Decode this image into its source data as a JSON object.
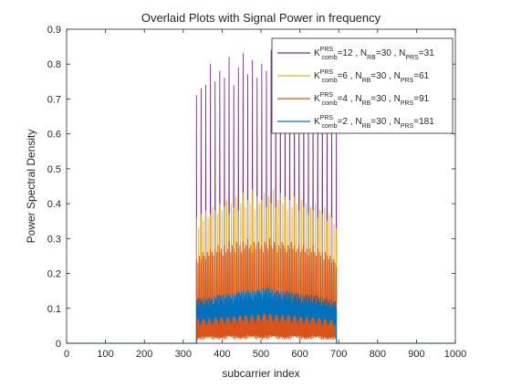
{
  "chart_data": {
    "type": "line",
    "title": "Overlaid Plots with Signal Power in frequency",
    "xlabel": "subcarrier index",
    "ylabel": "Power Spectral Density",
    "xlim": [
      0,
      1000
    ],
    "ylim": [
      0,
      0.9
    ],
    "xticks": [
      0,
      100,
      200,
      300,
      400,
      500,
      600,
      700,
      800,
      900,
      1000
    ],
    "yticks": [
      0,
      0.1,
      0.2,
      0.3,
      0.4,
      0.5,
      0.6,
      0.7,
      0.8,
      0.9
    ],
    "grid": false,
    "legend_position": "top-right",
    "occupied_range": [
      334,
      694
    ],
    "series": [
      {
        "legend": {
          "base": "K",
          "sup": "PRS",
          "sub": "comb",
          "tail": [
            [
              "=12 , N",
              ""
            ],
            [
              "RB",
              "sub"
            ],
            [
              "=30 , N",
              ""
            ],
            [
              "PRS",
              "sub"
            ],
            [
              "=31",
              ""
            ]
          ]
        },
        "color": "#7E2F8E",
        "comb": 12,
        "x": [
          334,
          346,
          358,
          370,
          382,
          394,
          406,
          418,
          430,
          442,
          454,
          466,
          478,
          490,
          502,
          514,
          526,
          538,
          550,
          562,
          574,
          586,
          598,
          610,
          622,
          634,
          646,
          658,
          670,
          682,
          694
        ],
        "values": [
          0.71,
          0.73,
          0.74,
          0.8,
          0.75,
          0.78,
          0.76,
          0.82,
          0.74,
          0.79,
          0.83,
          0.77,
          0.81,
          0.76,
          0.8,
          0.78,
          0.84,
          0.79,
          0.81,
          0.77,
          0.83,
          0.8,
          0.78,
          0.82,
          0.74,
          0.79,
          0.76,
          0.81,
          0.73,
          0.75,
          0.7
        ]
      },
      {
        "legend": {
          "base": "K",
          "sup": "PRS",
          "sub": "comb",
          "tail": [
            [
              "=6 , N",
              ""
            ],
            [
              "RB",
              "sub"
            ],
            [
              "=30 , N",
              ""
            ],
            [
              "PRS",
              "sub"
            ],
            [
              "=61",
              ""
            ]
          ]
        },
        "color": "#EDB120",
        "comb": 6,
        "x": [
          334,
          340,
          346,
          352,
          358,
          364,
          370,
          376,
          382,
          388,
          394,
          400,
          406,
          412,
          418,
          424,
          430,
          436,
          442,
          448,
          454,
          460,
          466,
          472,
          478,
          484,
          490,
          496,
          502,
          508,
          514,
          520,
          526,
          532,
          538,
          544,
          550,
          556,
          562,
          568,
          574,
          580,
          586,
          592,
          598,
          604,
          610,
          616,
          622,
          628,
          634,
          640,
          646,
          652,
          658,
          664,
          670,
          676,
          682,
          688,
          694
        ],
        "values": [
          0.36,
          0.33,
          0.37,
          0.35,
          0.38,
          0.36,
          0.37,
          0.39,
          0.38,
          0.37,
          0.4,
          0.38,
          0.39,
          0.41,
          0.37,
          0.4,
          0.39,
          0.42,
          0.38,
          0.4,
          0.43,
          0.39,
          0.41,
          0.4,
          0.44,
          0.38,
          0.42,
          0.4,
          0.41,
          0.43,
          0.39,
          0.42,
          0.4,
          0.44,
          0.39,
          0.41,
          0.43,
          0.4,
          0.42,
          0.38,
          0.41,
          0.39,
          0.42,
          0.4,
          0.38,
          0.41,
          0.39,
          0.4,
          0.37,
          0.39,
          0.38,
          0.4,
          0.36,
          0.38,
          0.37,
          0.39,
          0.35,
          0.37,
          0.36,
          0.34,
          0.33
        ]
      },
      {
        "legend": {
          "base": "K",
          "sup": "PRS",
          "sub": "comb",
          "tail": [
            [
              "=4 , N",
              ""
            ],
            [
              "RB",
              "sub"
            ],
            [
              "=30 , N",
              ""
            ],
            [
              "PRS",
              "sub"
            ],
            [
              "=91",
              ""
            ]
          ]
        },
        "color": "#D95319",
        "comb": 4,
        "x": [
          334,
          338,
          342,
          346,
          350,
          354,
          358,
          362,
          366,
          370,
          374,
          378,
          382,
          386,
          390,
          394,
          398,
          402,
          406,
          410,
          414,
          418,
          422,
          426,
          430,
          434,
          438,
          442,
          446,
          450,
          454,
          458,
          462,
          466,
          470,
          474,
          478,
          482,
          486,
          490,
          494,
          498,
          502,
          506,
          510,
          514,
          518,
          522,
          526,
          530,
          534,
          538,
          542,
          546,
          550,
          554,
          558,
          562,
          566,
          570,
          574,
          578,
          582,
          586,
          590,
          594,
          598,
          602,
          606,
          610,
          614,
          618,
          622,
          626,
          630,
          634,
          638,
          642,
          646,
          650,
          654,
          658,
          662,
          666,
          670,
          674,
          678,
          682,
          686,
          690,
          694
        ],
        "values": [
          0.24,
          0.23,
          0.25,
          0.24,
          0.26,
          0.25,
          0.24,
          0.26,
          0.25,
          0.27,
          0.26,
          0.25,
          0.27,
          0.26,
          0.28,
          0.26,
          0.27,
          0.25,
          0.28,
          0.26,
          0.27,
          0.29,
          0.26,
          0.28,
          0.27,
          0.26,
          0.29,
          0.27,
          0.28,
          0.26,
          0.29,
          0.27,
          0.28,
          0.3,
          0.27,
          0.28,
          0.26,
          0.29,
          0.27,
          0.28,
          0.29,
          0.27,
          0.28,
          0.26,
          0.29,
          0.28,
          0.27,
          0.3,
          0.28,
          0.27,
          0.29,
          0.28,
          0.26,
          0.28,
          0.27,
          0.29,
          0.28,
          0.27,
          0.26,
          0.28,
          0.27,
          0.29,
          0.27,
          0.28,
          0.26,
          0.27,
          0.28,
          0.26,
          0.27,
          0.28,
          0.26,
          0.27,
          0.25,
          0.27,
          0.26,
          0.28,
          0.26,
          0.25,
          0.27,
          0.26,
          0.25,
          0.26,
          0.24,
          0.26,
          0.25,
          0.24,
          0.25,
          0.23,
          0.24,
          0.23,
          0.22
        ]
      },
      {
        "legend": {
          "base": "K",
          "sup": "PRS",
          "sub": "comb",
          "tail": [
            [
              "=2 , N",
              ""
            ],
            [
              "RB",
              "sub"
            ],
            [
              "=30 , N",
              ""
            ],
            [
              "PRS",
              "sub"
            ],
            [
              "=181",
              ""
            ]
          ]
        },
        "color": "#0072BD",
        "comb": 2,
        "envelope": {
          "x": [
            334,
            364,
            394,
            424,
            454,
            484,
            514,
            544,
            574,
            604,
            634,
            664,
            694
          ],
          "peak": [
            0.13,
            0.13,
            0.14,
            0.14,
            0.15,
            0.15,
            0.16,
            0.15,
            0.15,
            0.14,
            0.14,
            0.13,
            0.12
          ]
        }
      }
    ]
  }
}
